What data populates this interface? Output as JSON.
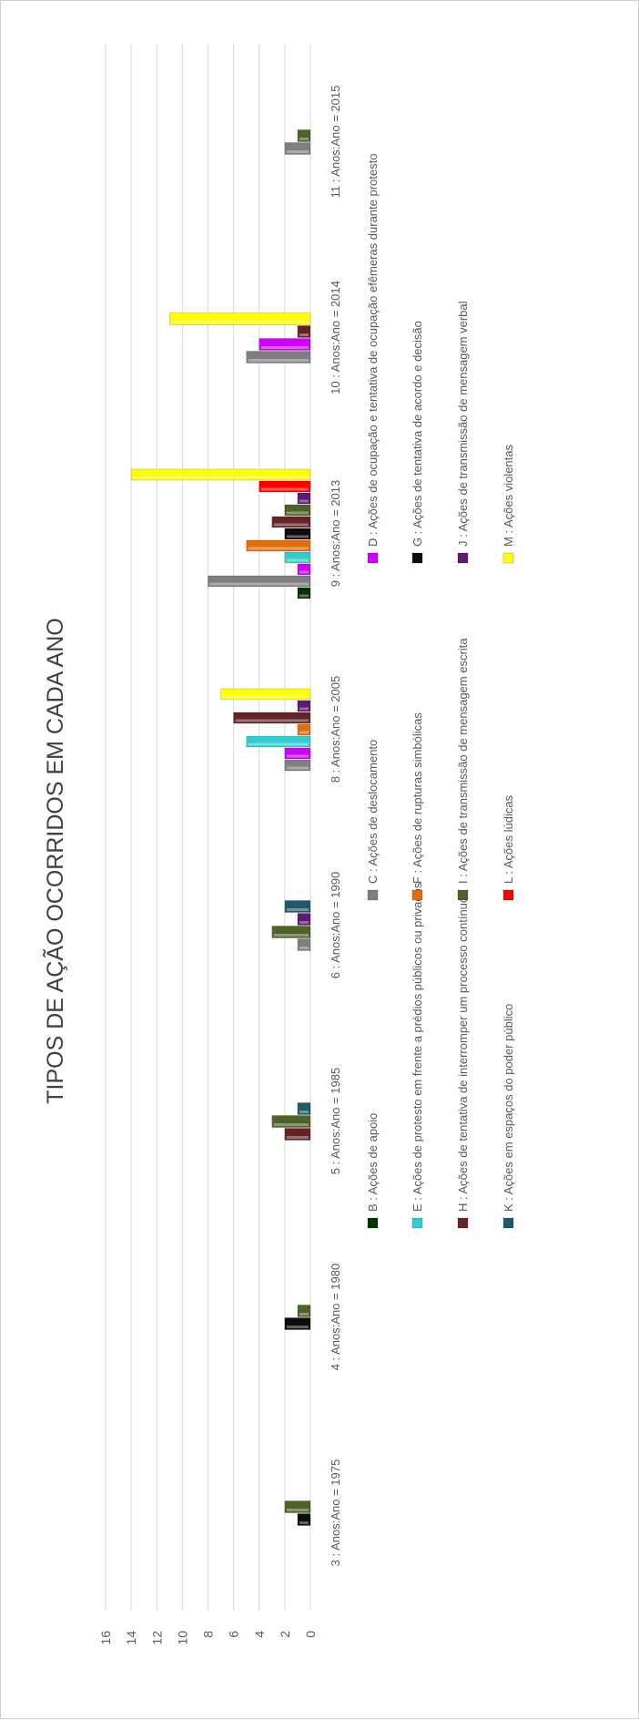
{
  "chart_data": {
    "type": "bar",
    "title": "TIPOS DE AÇÃO OCORRIDOS EM CADA ANO",
    "xlabel": "",
    "ylabel": "",
    "ylim": [
      0,
      16
    ],
    "yticks": [
      0,
      2,
      4,
      6,
      8,
      10,
      12,
      14,
      16
    ],
    "grid": true,
    "legend_position": "bottom",
    "categories": [
      "3 : Anos:Ano = 1975",
      "4 : Anos:Ano = 1980",
      "5 : Anos:Ano = 1985",
      "6 : Anos:Ano = 1990",
      "8 : Anos:Ano = 2005",
      "9 : Anos:Ano = 2013",
      "10 : Anos:Ano = 2014",
      "11 : Anos:Ano = 2015"
    ],
    "series": [
      {
        "name": "B : Ações de apoio",
        "color": "#003300",
        "values": [
          0,
          0,
          0,
          0,
          0,
          1,
          0,
          0
        ]
      },
      {
        "name": "C : Ações de deslocamento",
        "color": "#7f7f7f",
        "values": [
          0,
          0,
          0,
          1,
          2,
          8,
          5,
          2
        ]
      },
      {
        "name": "D : Ações de ocupação e tentativa de ocupação efêmeras durante protesto",
        "color": "#cc00ff",
        "values": [
          0,
          0,
          0,
          0,
          2,
          1,
          4,
          0
        ]
      },
      {
        "name": "E : Ações de protesto em frente a prédios públicos ou privados",
        "color": "#33cccc",
        "values": [
          0,
          0,
          0,
          0,
          5,
          2,
          0,
          0
        ]
      },
      {
        "name": "F : Ações de rupturas simbólicas",
        "color": "#e46c0a",
        "values": [
          0,
          0,
          0,
          0,
          1,
          5,
          0,
          0
        ]
      },
      {
        "name": "G : Ações de tentativa de acordo e decisão",
        "color": "#0d0d0d",
        "values": [
          1,
          2,
          0,
          0,
          0,
          2,
          0,
          0
        ]
      },
      {
        "name": "H : Ações de tentativa de interromper um processo contínuo",
        "color": "#632523",
        "values": [
          0,
          0,
          2,
          0,
          6,
          3,
          1,
          0
        ]
      },
      {
        "name": "I : Ações de transmissão de mensagem escrita",
        "color": "#4f6228",
        "values": [
          2,
          1,
          3,
          3,
          0,
          2,
          0,
          1
        ]
      },
      {
        "name": "J : Ações de transmissão de mensagem verbal",
        "color": "#5c1b72",
        "values": [
          0,
          0,
          0,
          1,
          1,
          1,
          0,
          0
        ]
      },
      {
        "name": "K : Ações em espaços do poder público",
        "color": "#215968",
        "values": [
          0,
          0,
          1,
          2,
          0,
          0,
          0,
          0
        ]
      },
      {
        "name": "L : Ações lúdicas",
        "color": "#ff0000",
        "values": [
          0,
          0,
          0,
          0,
          0,
          4,
          0,
          0
        ]
      },
      {
        "name": "M : Ações violentas",
        "color": "#ffff00",
        "values": [
          0,
          0,
          0,
          0,
          7,
          14,
          11,
          0
        ]
      }
    ]
  }
}
